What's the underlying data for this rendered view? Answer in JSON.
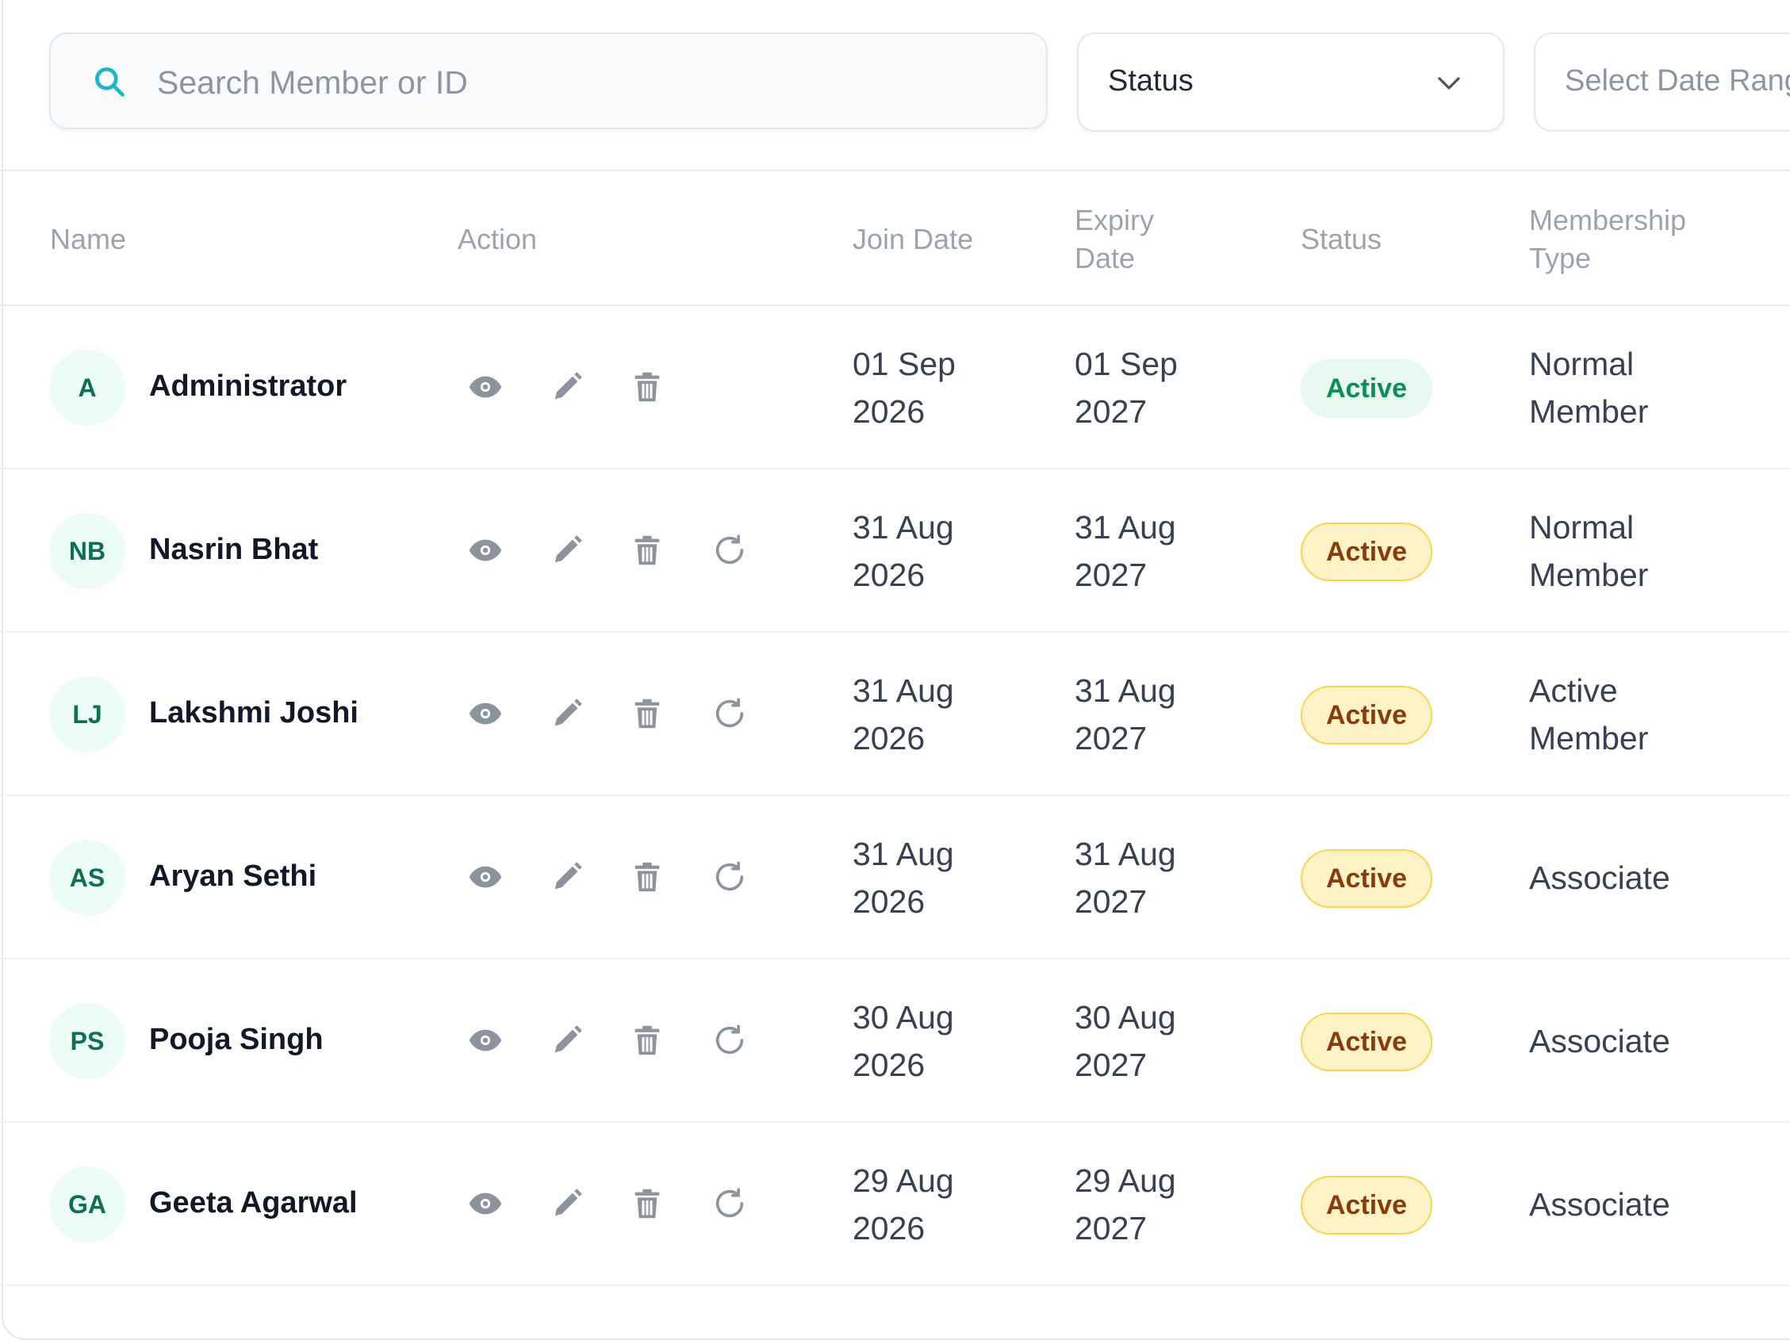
{
  "filters": {
    "search_placeholder": "Search Member or ID",
    "status_label": "Status",
    "date_range_placeholder": "Select Date Range"
  },
  "table": {
    "columns": {
      "name": "Name",
      "action": "Action",
      "join_date_1": "Join Date",
      "expiry_date_1": "Expiry",
      "expiry_date_2": "Date",
      "status": "Status",
      "membership_type_1": "Membership",
      "membership_type_2": "Type"
    },
    "rows": [
      {
        "initials": "A",
        "name": "Administrator",
        "join_1": "01 Sep",
        "join_2": "2026",
        "expiry_1": "01 Sep",
        "expiry_2": "2027",
        "status": "Active",
        "type_1": "Normal",
        "type_2": "Member"
      },
      {
        "initials": "NB",
        "name": "Nasrin Bhat",
        "join_1": "31 Aug",
        "join_2": "2026",
        "expiry_1": "31 Aug",
        "expiry_2": "2027",
        "status": "Active",
        "type_1": "Normal",
        "type_2": "Member"
      },
      {
        "initials": "LJ",
        "name": "Lakshmi Joshi",
        "join_1": "31 Aug",
        "join_2": "2026",
        "expiry_1": "31 Aug",
        "expiry_2": "2027",
        "status": "Active",
        "type_1": "Active",
        "type_2": "Member"
      },
      {
        "initials": "AS",
        "name": "Aryan Sethi",
        "join_1": "31 Aug",
        "join_2": "2026",
        "expiry_1": "31 Aug",
        "expiry_2": "2027",
        "status": "Active",
        "type_1": "Associate",
        "type_2": ""
      },
      {
        "initials": "PS",
        "name": "Pooja Singh",
        "join_1": "30 Aug",
        "join_2": "2026",
        "expiry_1": "30 Aug",
        "expiry_2": "2027",
        "status": "Active",
        "type_1": "Associate",
        "type_2": ""
      },
      {
        "initials": "GA",
        "name": "Geeta Agarwal",
        "join_1": "29 Aug",
        "join_2": "2026",
        "expiry_1": "29 Aug",
        "expiry_2": "2027",
        "status": "Active",
        "type_1": "Associate",
        "type_2": ""
      }
    ]
  },
  "icons": {
    "search": "search-icon",
    "chevron": "chevron-down-icon",
    "view": "eye-icon",
    "edit": "pencil-icon",
    "delete": "trash-icon",
    "renew": "refresh-icon"
  },
  "colors": {
    "accent": "#1fb5c9",
    "status_active_green_bg": "#e6f8ef",
    "status_active_green_text": "#0a8f55",
    "status_active_yellow_bg": "#fef3c7",
    "status_active_yellow_text": "#8a3b0c",
    "avatar_bg": "#ecfdf5",
    "avatar_text": "#0f6e57"
  }
}
